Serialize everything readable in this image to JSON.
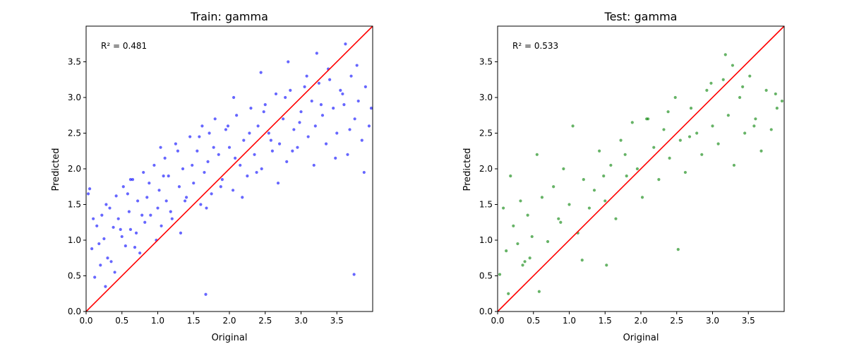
{
  "figure": {
    "background": "#ffffff"
  },
  "chart_data": [
    {
      "type": "scatter",
      "title": "Train: gamma",
      "xlabel": "Original",
      "ylabel": "Predicted",
      "xlim": [
        0.0,
        4.0
      ],
      "ylim": [
        0.0,
        4.0
      ],
      "xticks": [
        0.0,
        0.5,
        1.0,
        1.5,
        2.0,
        2.5,
        3.0,
        3.5
      ],
      "yticks": [
        0.0,
        0.5,
        1.0,
        1.5,
        2.0,
        2.5,
        3.0,
        3.5
      ],
      "xtick_labels": [
        "0.0",
        "0.5",
        "1.0",
        "1.5",
        "2.0",
        "2.5",
        "3.0",
        "3.5"
      ],
      "ytick_labels": [
        "0.0",
        "0.5",
        "1.0",
        "1.5",
        "2.0",
        "2.5",
        "3.0",
        "3.5"
      ],
      "annotation": "R² = 0.481",
      "grid": false,
      "point_color": "#0000ff",
      "point_opacity": 0.6,
      "reference_line": {
        "x": [
          0.0,
          4.0
        ],
        "y": [
          0.0,
          4.0
        ],
        "color": "#ff0000"
      },
      "points": {
        "x": [
          0.05,
          0.08,
          0.12,
          0.15,
          0.2,
          0.22,
          0.25,
          0.3,
          0.33,
          0.38,
          0.4,
          0.42,
          0.45,
          0.5,
          0.52,
          0.55,
          0.6,
          0.62,
          0.65,
          0.7,
          0.72,
          0.75,
          0.8,
          0.82,
          0.85,
          0.9,
          0.95,
          1.0,
          1.02,
          1.05,
          1.1,
          1.12,
          1.15,
          1.2,
          1.25,
          1.3,
          1.32,
          1.35,
          1.4,
          1.45,
          1.5,
          1.55,
          1.6,
          1.62,
          1.65,
          1.7,
          1.75,
          1.8,
          1.85,
          1.9,
          1.95,
          2.0,
          2.05,
          2.1,
          2.15,
          2.2,
          2.25,
          2.3,
          2.35,
          2.4,
          2.45,
          2.5,
          2.55,
          2.6,
          2.65,
          2.7,
          2.75,
          2.8,
          2.85,
          2.9,
          2.95,
          3.0,
          3.05,
          3.1,
          3.15,
          3.2,
          3.25,
          3.3,
          3.35,
          3.4,
          3.45,
          3.5,
          3.55,
          3.6,
          3.65,
          3.7,
          3.75,
          3.8,
          3.85,
          3.9,
          3.95,
          0.1,
          0.18,
          0.28,
          0.35,
          0.48,
          0.58,
          0.68,
          0.78,
          0.88,
          0.98,
          1.08,
          1.18,
          1.28,
          1.38,
          1.48,
          1.58,
          1.68,
          1.78,
          1.88,
          1.98,
          2.08,
          2.18,
          2.28,
          2.38,
          2.48,
          2.58,
          2.68,
          2.78,
          2.88,
          2.98,
          3.08,
          3.18,
          3.28,
          3.38,
          3.48,
          3.58,
          3.68,
          3.78,
          3.88,
          3.98,
          0.03,
          0.27,
          0.62,
          1.04,
          1.72,
          2.06,
          2.44,
          2.82,
          3.22,
          3.62,
          3.74,
          1.67
        ],
        "y": [
          1.72,
          0.88,
          0.48,
          1.2,
          0.65,
          1.35,
          1.02,
          0.75,
          1.45,
          1.18,
          0.55,
          1.62,
          1.3,
          1.05,
          1.75,
          0.92,
          1.4,
          1.15,
          1.85,
          1.1,
          1.55,
          0.82,
          1.95,
          1.25,
          1.6,
          1.35,
          2.05,
          1.45,
          1.7,
          1.2,
          2.15,
          1.55,
          1.9,
          1.3,
          2.35,
          1.75,
          1.1,
          2.0,
          1.6,
          2.45,
          1.8,
          2.25,
          1.5,
          2.6,
          1.95,
          2.1,
          1.65,
          2.7,
          2.2,
          1.85,
          2.55,
          2.3,
          1.7,
          2.75,
          2.05,
          2.4,
          1.9,
          2.85,
          2.2,
          2.6,
          2.0,
          2.9,
          2.5,
          2.25,
          3.05,
          2.35,
          2.7,
          2.1,
          3.1,
          2.55,
          2.3,
          2.8,
          3.15,
          2.45,
          2.95,
          2.6,
          3.2,
          2.75,
          2.35,
          3.25,
          2.85,
          2.5,
          3.1,
          2.9,
          2.2,
          3.3,
          2.7,
          2.95,
          2.4,
          3.15,
          2.6,
          1.3,
          0.95,
          1.5,
          0.7,
          1.15,
          1.65,
          0.9,
          1.35,
          1.8,
          1.0,
          1.9,
          1.4,
          2.25,
          1.55,
          2.05,
          2.45,
          1.45,
          2.3,
          1.75,
          2.6,
          2.15,
          1.6,
          2.5,
          1.95,
          2.8,
          2.4,
          1.8,
          3.0,
          2.25,
          2.65,
          3.3,
          2.05,
          2.9,
          3.4,
          2.15,
          3.05,
          2.55,
          3.45,
          1.95,
          2.85,
          1.65,
          0.35,
          1.85,
          2.3,
          2.5,
          3.0,
          3.35,
          3.5,
          3.62,
          3.75,
          0.52,
          0.24
        ]
      }
    },
    {
      "type": "scatter",
      "title": "Test: gamma",
      "xlabel": "Original",
      "ylabel": "Predicted",
      "xlim": [
        0.0,
        4.0
      ],
      "ylim": [
        0.0,
        4.0
      ],
      "xticks": [
        0.0,
        0.5,
        1.0,
        1.5,
        2.0,
        2.5,
        3.0,
        3.5
      ],
      "yticks": [
        0.0,
        0.5,
        1.0,
        1.5,
        2.0,
        2.5,
        3.0,
        3.5
      ],
      "xtick_labels": [
        "0.0",
        "0.5",
        "1.0",
        "1.5",
        "2.0",
        "2.5",
        "3.0",
        "3.5"
      ],
      "ytick_labels": [
        "0.0",
        "0.5",
        "1.0",
        "1.5",
        "2.0",
        "2.5",
        "3.0",
        "3.5"
      ],
      "annotation": "R² = 0.533",
      "grid": false,
      "point_color": "#008000",
      "point_opacity": 0.6,
      "reference_line": {
        "x": [
          0.0,
          4.0
        ],
        "y": [
          0.0,
          4.0
        ],
        "color": "#ff0000"
      },
      "points": {
        "x": [
          0.03,
          0.08,
          0.12,
          0.18,
          0.22,
          0.28,
          0.32,
          0.38,
          0.42,
          0.48,
          0.55,
          0.62,
          0.7,
          0.78,
          0.85,
          0.92,
          1.0,
          1.05,
          1.12,
          1.2,
          1.28,
          1.35,
          1.42,
          1.5,
          1.58,
          1.65,
          1.72,
          1.8,
          1.88,
          1.95,
          2.02,
          2.1,
          2.18,
          2.25,
          2.32,
          2.4,
          2.48,
          2.55,
          2.62,
          2.7,
          2.78,
          2.85,
          2.92,
          3.0,
          3.08,
          3.15,
          3.22,
          3.3,
          3.38,
          3.45,
          3.52,
          3.6,
          3.68,
          3.75,
          3.82,
          3.9,
          3.97,
          0.15,
          0.35,
          0.58,
          0.88,
          1.18,
          1.48,
          1.78,
          2.08,
          2.38,
          2.68,
          2.98,
          3.28,
          3.58,
          3.88,
          0.45,
          1.52,
          2.52,
          3.18,
          3.42
        ],
        "y": [
          0.52,
          1.45,
          0.85,
          1.9,
          1.2,
          0.95,
          1.55,
          0.7,
          1.35,
          1.05,
          2.2,
          1.6,
          0.98,
          1.75,
          1.3,
          2.0,
          1.5,
          2.6,
          1.1,
          1.85,
          1.45,
          1.7,
          2.25,
          1.55,
          2.05,
          1.3,
          2.4,
          1.9,
          2.65,
          2.0,
          1.6,
          2.7,
          2.3,
          1.85,
          2.55,
          2.15,
          3.0,
          2.4,
          1.95,
          2.85,
          2.5,
          2.2,
          3.1,
          2.6,
          2.35,
          3.25,
          2.75,
          2.05,
          3.0,
          2.5,
          3.3,
          2.7,
          2.25,
          3.1,
          2.55,
          2.85,
          2.95,
          0.25,
          0.65,
          0.28,
          1.25,
          0.72,
          1.9,
          2.2,
          2.7,
          2.8,
          2.45,
          3.2,
          3.45,
          2.6,
          3.05,
          0.75,
          0.65,
          0.87,
          3.6,
          3.15
        ]
      }
    }
  ]
}
